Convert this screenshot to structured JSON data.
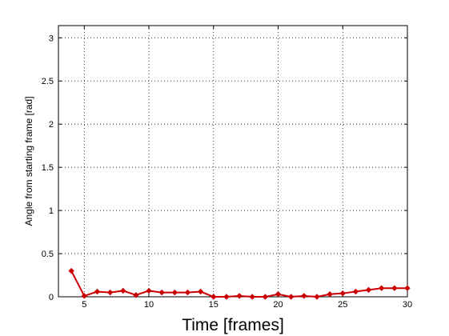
{
  "chart_data": {
    "type": "line",
    "xlabel": "Time [frames]",
    "ylabel": "Angle from starting frame [rad]",
    "xlim": [
      3,
      30
    ],
    "ylim": [
      0,
      3.1416
    ],
    "xticks": [
      5,
      10,
      15,
      20,
      25,
      30
    ],
    "yticks": [
      0,
      0.5,
      1,
      1.5,
      2,
      2.5,
      3
    ],
    "grid": true,
    "series": [
      {
        "color": "#cc0000",
        "marker": "diamond",
        "x": [
          4,
          5,
          6,
          7,
          8,
          9,
          10,
          11,
          12,
          13,
          14,
          15,
          16,
          17,
          18,
          19,
          20,
          21,
          22,
          23,
          24,
          25,
          26,
          27,
          28,
          29,
          30
        ],
        "y": [
          0.3,
          0.01,
          0.06,
          0.05,
          0.07,
          0.02,
          0.07,
          0.05,
          0.05,
          0.05,
          0.06,
          0.0,
          0.0,
          0.01,
          0.0,
          0.0,
          0.03,
          0.0,
          0.01,
          0.0,
          0.03,
          0.04,
          0.06,
          0.08,
          0.1,
          0.1,
          0.1
        ]
      }
    ]
  }
}
